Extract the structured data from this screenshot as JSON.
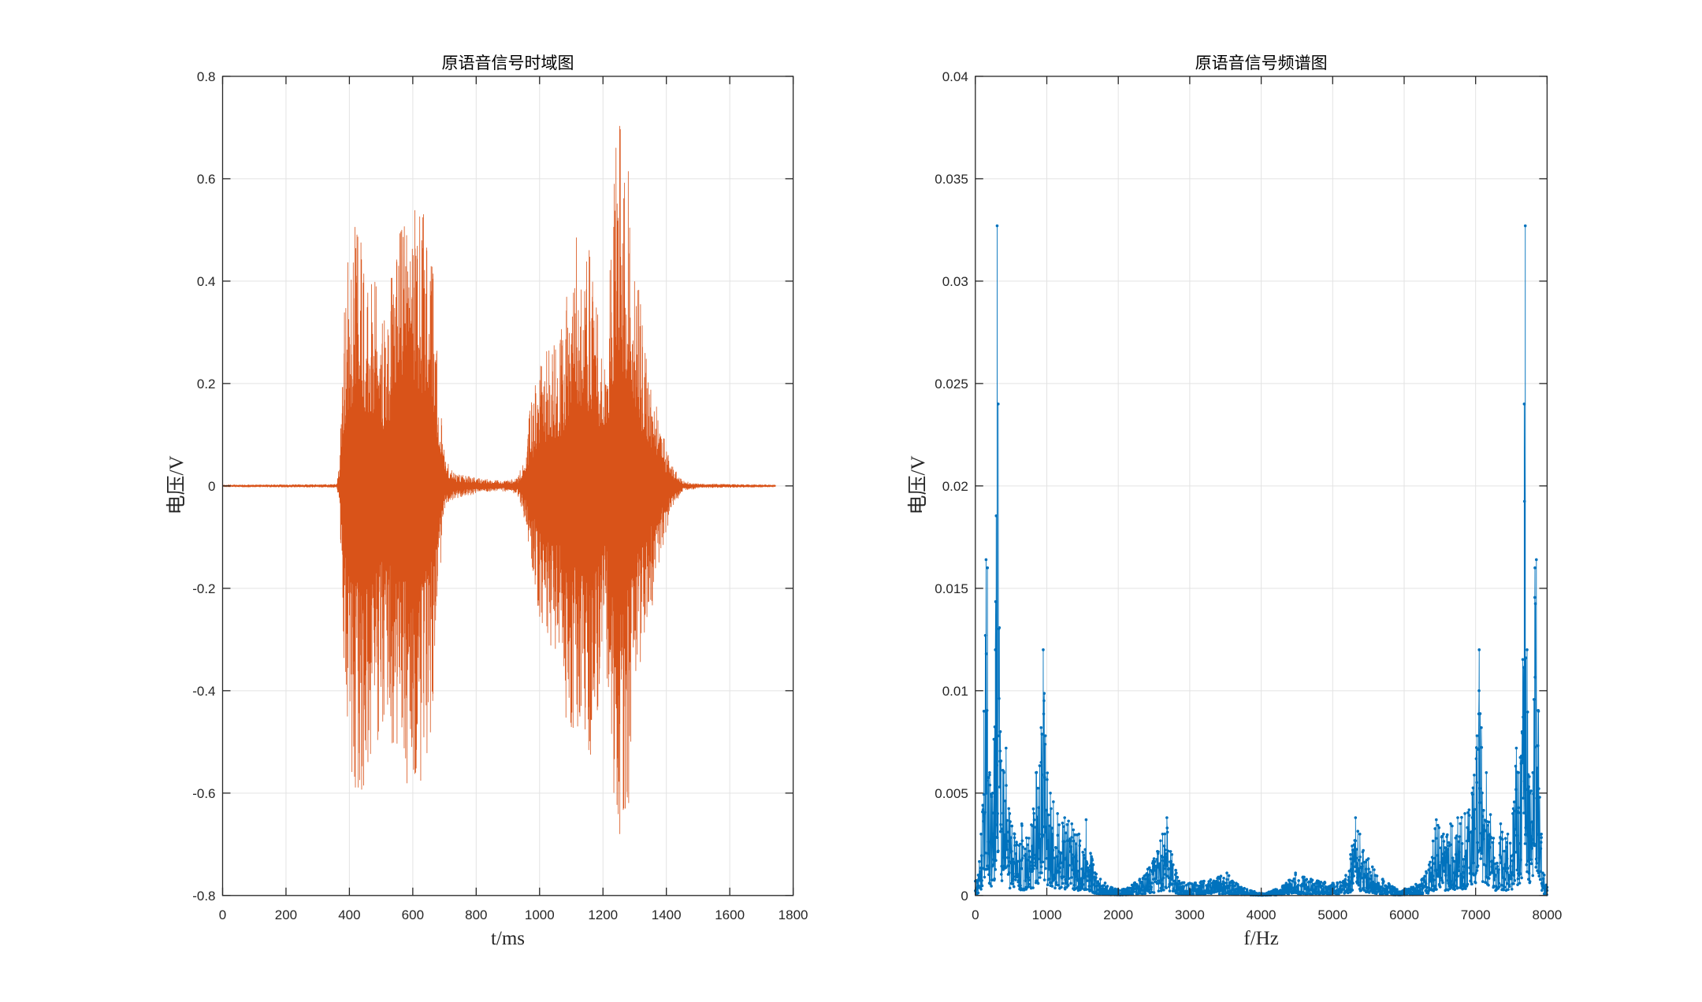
{
  "chart_data": [
    {
      "type": "line",
      "title": "原语音信号时域图",
      "xlabel": "t/ms",
      "ylabel": "电压/V",
      "xlim": [
        0,
        1800
      ],
      "ylim": [
        -0.8,
        0.8
      ],
      "xtick_labels": [
        "0",
        "200",
        "400",
        "600",
        "800",
        "1000",
        "1200",
        "1400",
        "1600",
        "1800"
      ],
      "ytick_labels": [
        "-0.8",
        "-0.6",
        "-0.4",
        "-0.2",
        "0",
        "0.2",
        "0.4",
        "0.6",
        "0.8"
      ],
      "grid": true,
      "box": true,
      "series": [
        {
          "color": "#D95319",
          "envelope": {
            "t": [
              0,
              360,
              370,
              380,
              395,
              410,
              425,
              440,
              460,
              480,
              500,
              520,
              540,
              560,
              580,
              600,
              620,
              640,
              655,
              670,
              685,
              700,
              730,
              800,
              880,
              930,
              950,
              970,
              1000,
              1030,
              1060,
              1090,
              1110,
              1130,
              1150,
              1170,
              1190,
              1210,
              1230,
              1245,
              1265,
              1285,
              1305,
              1330,
              1360,
              1390,
              1420,
              1450,
              1500,
              1745
            ],
            "upper": [
              0.002,
              0.003,
              0.05,
              0.3,
              0.45,
              0.52,
              0.5,
              0.47,
              0.45,
              0.42,
              0.36,
              0.35,
              0.45,
              0.5,
              0.53,
              0.57,
              0.56,
              0.55,
              0.5,
              0.4,
              0.2,
              0.06,
              0.025,
              0.015,
              0.01,
              0.015,
              0.05,
              0.15,
              0.24,
              0.28,
              0.29,
              0.42,
              0.6,
              0.45,
              0.5,
              0.43,
              0.3,
              0.22,
              0.55,
              0.7,
              0.71,
              0.62,
              0.45,
              0.3,
              0.18,
              0.1,
              0.04,
              0.01,
              0.004,
              0.002
            ],
            "lower": [
              -0.002,
              -0.003,
              -0.05,
              -0.35,
              -0.48,
              -0.58,
              -0.6,
              -0.6,
              -0.57,
              -0.55,
              -0.48,
              -0.47,
              -0.52,
              -0.55,
              -0.58,
              -0.61,
              -0.6,
              -0.55,
              -0.5,
              -0.43,
              -0.2,
              -0.06,
              -0.025,
              -0.015,
              -0.01,
              -0.015,
              -0.06,
              -0.14,
              -0.28,
              -0.31,
              -0.36,
              -0.48,
              -0.52,
              -0.5,
              -0.56,
              -0.52,
              -0.4,
              -0.36,
              -0.6,
              -0.72,
              -0.71,
              -0.6,
              -0.45,
              -0.32,
              -0.22,
              -0.13,
              -0.05,
              -0.012,
              -0.004,
              -0.002
            ]
          }
        }
      ]
    },
    {
      "type": "line",
      "title": "原语音信号频谱图",
      "xlabel": "f/Hz",
      "ylabel": "电压/V",
      "xlim": [
        0,
        8000
      ],
      "ylim": [
        0,
        0.04
      ],
      "xtick_labels": [
        "0",
        "1000",
        "2000",
        "3000",
        "4000",
        "5000",
        "6000",
        "7000",
        "8000"
      ],
      "ytick_labels": [
        "0",
        "0.005",
        "0.01",
        "0.015",
        "0.02",
        "0.025",
        "0.03",
        "0.035",
        "0.04"
      ],
      "grid": true,
      "box": true,
      "series": [
        {
          "color": "#0072BD",
          "marker": ".",
          "envelope": {
            "f": [
              0,
              40,
              80,
              120,
              150,
              170,
              200,
              240,
              280,
              305,
              320,
              350,
              400,
              430,
              480,
              550,
              650,
              750,
              850,
              920,
              950,
              980,
              1050,
              1150,
              1250,
              1350,
              1450,
              1550,
              1650,
              1750,
              1900,
              2100,
              2300,
              2500,
              2620,
              2680,
              2750,
              2850,
              3000,
              3200,
              3400,
              3520,
              3650,
              3800,
              4000,
              4200,
              4350,
              4480,
              4600,
              4800,
              5000,
              5150,
              5250,
              5320,
              5380,
              5500,
              5700,
              5900,
              6100,
              6250,
              6350,
              6450,
              6550,
              6650,
              6750,
              6850,
              6950,
              7020,
              7050,
              7080,
              7150,
              7250,
              7350,
              7450,
              7520,
              7570,
              7600,
              7650,
              7680,
              7695,
              7720,
              7760,
              7800,
              7830,
              7850,
              7880,
              7920,
              7960,
              8000
            ],
            "magnitude": [
              0.0007,
              0.001,
              0.003,
              0.009,
              0.0164,
              0.016,
              0.006,
              0.005,
              0.012,
              0.0327,
              0.024,
              0.008,
              0.006,
              0.0072,
              0.004,
              0.003,
              0.0035,
              0.0028,
              0.006,
              0.0082,
              0.012,
              0.0078,
              0.005,
              0.004,
              0.0038,
              0.0035,
              0.003,
              0.0037,
              0.0015,
              0.0008,
              0.0004,
              0.0003,
              0.0008,
              0.0018,
              0.003,
              0.0038,
              0.002,
              0.0007,
              0.0006,
              0.0007,
              0.0009,
              0.0011,
              0.0006,
              0.0003,
              0.0001,
              0.0003,
              0.0006,
              0.0011,
              0.0009,
              0.0007,
              0.0006,
              0.0007,
              0.002,
              0.0038,
              0.003,
              0.0018,
              0.0008,
              0.0003,
              0.0004,
              0.0008,
              0.0015,
              0.0037,
              0.003,
              0.0035,
              0.0038,
              0.004,
              0.005,
              0.0078,
              0.012,
              0.0082,
              0.006,
              0.0028,
              0.0035,
              0.003,
              0.004,
              0.0072,
              0.006,
              0.008,
              0.024,
              0.0327,
              0.012,
              0.005,
              0.006,
              0.016,
              0.0164,
              0.009,
              0.003,
              0.001,
              0.0004
            ]
          }
        }
      ]
    }
  ]
}
